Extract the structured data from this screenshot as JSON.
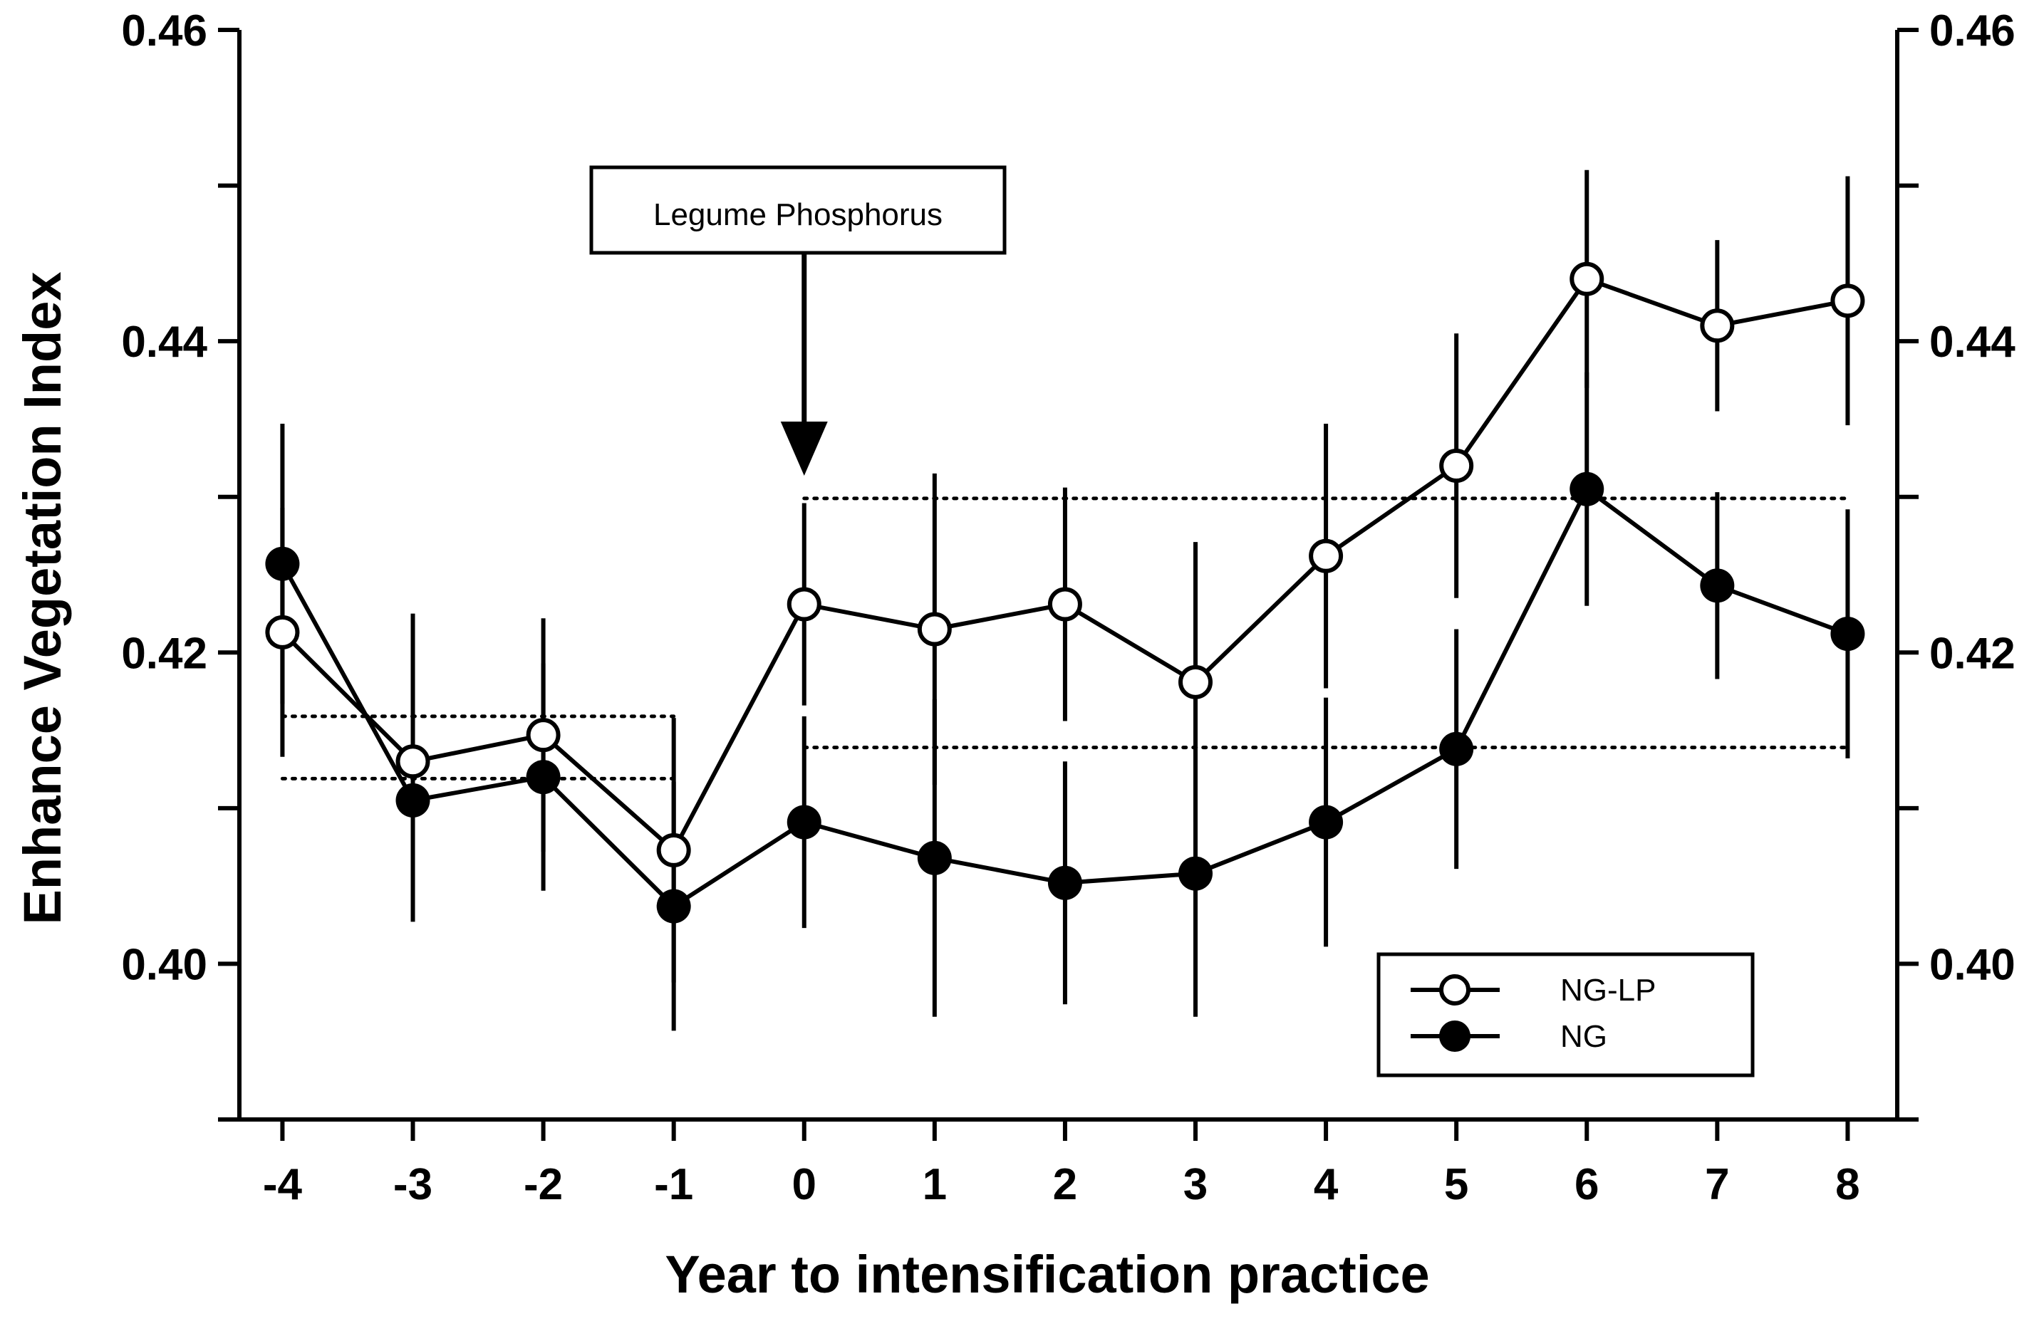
{
  "chart_data": {
    "type": "line",
    "title": "",
    "xlabel": "Year to intensification practice",
    "ylabel": "Enhance Vegetation Index",
    "x": [
      -4,
      -3,
      -2,
      -1,
      0,
      1,
      2,
      3,
      4,
      5,
      6,
      7,
      8
    ],
    "x_tick_labels": [
      "-4",
      "-3",
      "-2",
      "-1",
      "0",
      "1",
      "2",
      "3",
      "4",
      "5",
      "6",
      "7",
      "8"
    ],
    "xlim": [
      -4.33,
      8.38
    ],
    "ylim": [
      0.39,
      0.46
    ],
    "y_ticks_major": [
      0.4,
      0.42,
      0.44,
      0.46
    ],
    "y_tick_labels": [
      "0.40",
      "0.42",
      "0.44",
      "0.46"
    ],
    "y_ticks_minor": [
      0.39,
      0.41,
      0.43,
      0.45
    ],
    "right_axis_mirror": true,
    "grid": false,
    "legend_position": "bottom-right",
    "series": [
      {
        "name": "NG-LP",
        "marker": "open-circle",
        "values": [
          0.4213,
          0.413,
          0.4147,
          0.4073,
          0.4231,
          0.4215,
          0.4231,
          0.4181,
          0.4262,
          0.432,
          0.444,
          0.441,
          0.4426
        ],
        "error": [
          0.008,
          0.0095,
          0.0075,
          0.0085,
          0.0065,
          0.01,
          0.0075,
          0.009,
          0.0085,
          0.0085,
          0.007,
          0.0055,
          0.008
        ]
      },
      {
        "name": "NG",
        "marker": "filled-circle",
        "values": [
          0.4257,
          0.4105,
          0.412,
          0.4037,
          0.4091,
          0.4068,
          0.4052,
          0.4058,
          0.4091,
          0.4138,
          0.4305,
          0.4243,
          0.4212
        ],
        "error": [
          0.009,
          0.0078,
          0.0073,
          0.008,
          0.0068,
          0.0102,
          0.0078,
          0.0092,
          0.008,
          0.0077,
          0.0075,
          0.006,
          0.008
        ]
      }
    ],
    "reference_lines": [
      {
        "x": [
          -4,
          -1
        ],
        "y": 0.4159,
        "style": "dotted"
      },
      {
        "x": [
          -4,
          -1
        ],
        "y": 0.4119,
        "style": "dotted"
      },
      {
        "x": [
          0,
          8
        ],
        "y": 0.4299,
        "style": "dotted"
      },
      {
        "x": [
          0,
          8
        ],
        "y": 0.4139,
        "style": "dotted"
      }
    ],
    "annotations": [
      {
        "text": "Legume Phosphorus",
        "points_to_x": 0,
        "type": "arrow-box"
      }
    ]
  }
}
